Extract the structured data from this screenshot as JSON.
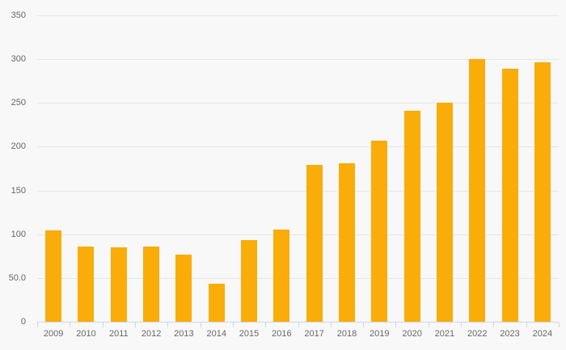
{
  "chart_data": {
    "type": "bar",
    "title": "",
    "xlabel": "",
    "ylabel": "",
    "categories": [
      "2009",
      "2010",
      "2011",
      "2012",
      "2013",
      "2014",
      "2015",
      "2016",
      "2017",
      "2018",
      "2019",
      "2020",
      "2021",
      "2022",
      "2023",
      "2024"
    ],
    "values": [
      104,
      86,
      85,
      86,
      77,
      43,
      93,
      105,
      179,
      181,
      207,
      241,
      250,
      300,
      289,
      296
    ],
    "ylim": [
      0,
      350
    ],
    "ytick_values": [
      0,
      50,
      100,
      150,
      200,
      250,
      300,
      350
    ],
    "ytick_labels": [
      "0",
      "50.0",
      "100",
      "150",
      "200",
      "250",
      "300",
      "350"
    ],
    "grid": true,
    "legend": false
  },
  "colors": {
    "bar": "#FAAC08",
    "background": "#f8f8f8",
    "gridline": "#e6e6e6",
    "axis_line": "#ccd6eb",
    "label_text": "#666666"
  }
}
